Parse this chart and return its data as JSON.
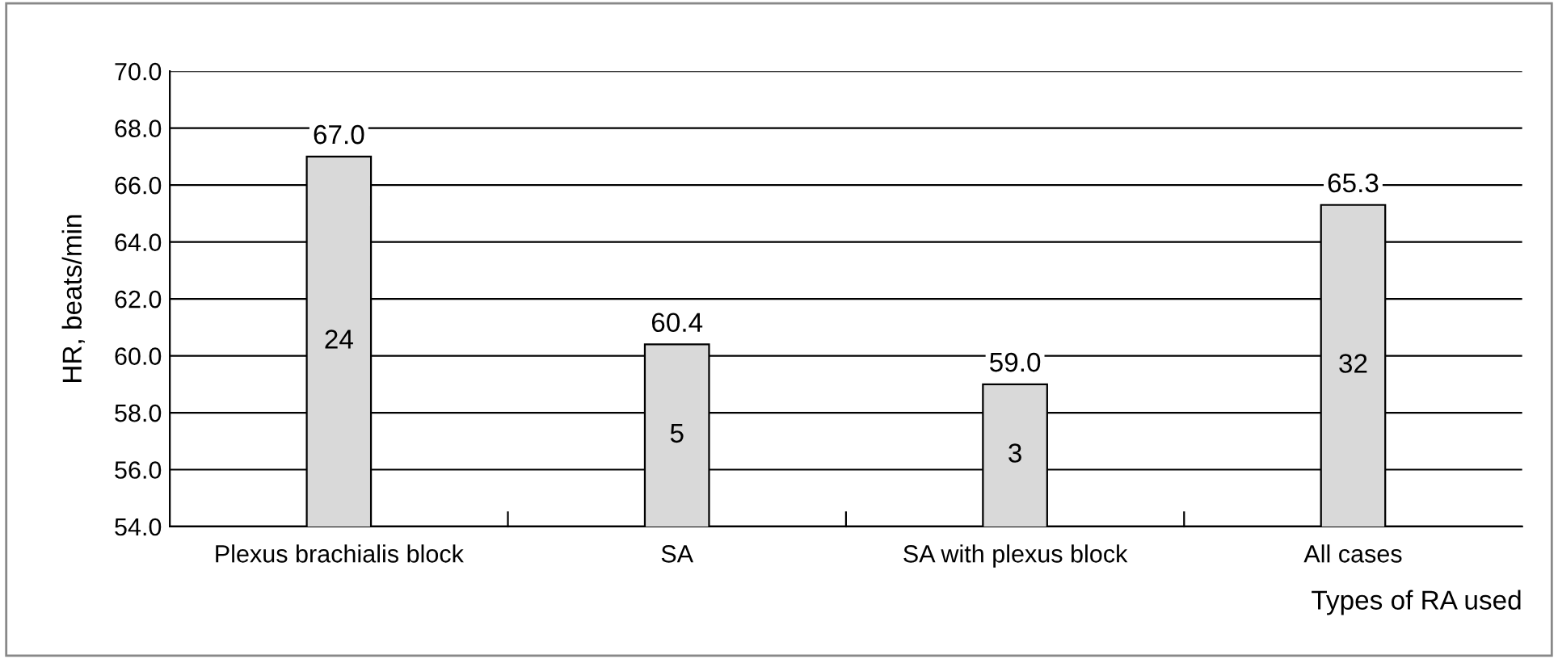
{
  "chart_data": {
    "type": "bar",
    "ylabel": "HR, beats/min",
    "xlabel": "Types of RA used",
    "categories": [
      "Plexus brachialis block",
      "SA",
      "SA with plexus block",
      "All cases"
    ],
    "values": [
      67.0,
      60.4,
      59.0,
      65.3
    ],
    "color": "#d9d9d9",
    "value_labels": [
      "67.0",
      "60.4",
      "59.0",
      "65.3"
    ],
    "ylim": [
      54,
      70
    ],
    "yticks": [
      {
        "value": 54,
        "label": "54.0"
      },
      {
        "value": 56,
        "label": "56.0"
      },
      {
        "value": 58,
        "label": "58.0"
      },
      {
        "value": 60,
        "label": "60.0"
      },
      {
        "value": 62,
        "label": "62.0"
      },
      {
        "value": 64,
        "label": "64.0"
      },
      {
        "value": 66,
        "label": "66.0"
      },
      {
        "value": 68,
        "label": "68.0"
      },
      {
        "value": 70,
        "label": "70.0"
      }
    ],
    "grid": "y",
    "annotations": [
      "24",
      "5",
      "3",
      "32"
    ]
  }
}
